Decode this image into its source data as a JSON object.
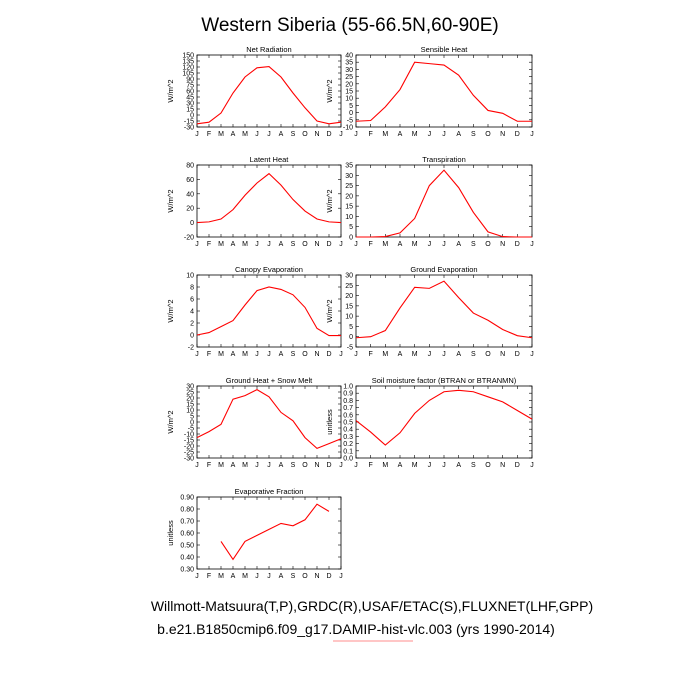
{
  "title": "Western Siberia (55-66.5N,60-90E)",
  "footer": {
    "line1": "Willmott-Matsuura(T,P),GRDC(R),USAF/ETAC(S),FLUXNET(LHF,GPP)",
    "line2": "b.e21.B1850cmip6.f09_g17.DAMIP-hist-vlc.003 (yrs 1990-2014)"
  },
  "colors": {
    "series": "#ff0000",
    "axis": "#000000"
  },
  "chart_data": [
    {
      "type": "line",
      "title": "Net Radiation",
      "ylabel": "W/m^2",
      "categories": [
        "J",
        "F",
        "M",
        "A",
        "M",
        "J",
        "J",
        "A",
        "S",
        "O",
        "N",
        "D",
        "J"
      ],
      "ylim": [
        -30,
        150
      ],
      "yticks": [
        -30,
        -15,
        0,
        15,
        30,
        45,
        60,
        75,
        90,
        105,
        120,
        135,
        150
      ],
      "values": [
        -22,
        -18,
        5,
        55,
        95,
        118,
        121,
        95,
        55,
        18,
        -15,
        -22,
        -18
      ]
    },
    {
      "type": "line",
      "title": "Sensible Heat",
      "ylabel": "W/m^2",
      "categories": [
        "J",
        "F",
        "M",
        "A",
        "M",
        "J",
        "J",
        "A",
        "S",
        "O",
        "N",
        "D",
        "J"
      ],
      "ylim": [
        -10,
        40
      ],
      "yticks": [
        -10,
        -5,
        0,
        5,
        10,
        15,
        20,
        25,
        30,
        35,
        40
      ],
      "values": [
        -6,
        -5.5,
        4,
        16,
        35,
        34,
        33,
        26,
        12,
        1.5,
        -0.5,
        -6,
        -6
      ]
    },
    {
      "type": "line",
      "title": "Latent Heat",
      "ylabel": "W/m^2",
      "categories": [
        "J",
        "F",
        "M",
        "A",
        "M",
        "J",
        "J",
        "A",
        "S",
        "O",
        "N",
        "D",
        "J"
      ],
      "ylim": [
        -20,
        80
      ],
      "yticks": [
        -20,
        0,
        20,
        40,
        60,
        80
      ],
      "values": [
        0,
        1,
        5,
        18,
        38,
        55,
        68,
        52,
        32,
        16,
        5,
        1,
        0
      ]
    },
    {
      "type": "line",
      "title": "Transpiration",
      "ylabel": "W/m^2",
      "categories": [
        "J",
        "F",
        "M",
        "A",
        "M",
        "J",
        "J",
        "A",
        "S",
        "O",
        "N",
        "D",
        "J"
      ],
      "ylim": [
        0,
        35
      ],
      "yticks": [
        0,
        5,
        10,
        15,
        20,
        25,
        30,
        35
      ],
      "values": [
        0,
        0,
        0.2,
        2,
        9,
        25,
        32.5,
        24,
        12,
        2.5,
        0.2,
        0,
        0
      ]
    },
    {
      "type": "line",
      "title": "Canopy Evaporation",
      "ylabel": "W/m^2",
      "categories": [
        "J",
        "F",
        "M",
        "A",
        "M",
        "J",
        "J",
        "A",
        "S",
        "O",
        "N",
        "D",
        "J"
      ],
      "ylim": [
        -2,
        10
      ],
      "yticks": [
        -2,
        0,
        2,
        4,
        6,
        8,
        10
      ],
      "values": [
        0,
        0.4,
        1.4,
        2.4,
        5,
        7.4,
        8,
        7.6,
        6.7,
        4.6,
        1.1,
        -0.1,
        -0.1
      ]
    },
    {
      "type": "line",
      "title": "Ground Evaporation",
      "ylabel": "W/m^2",
      "categories": [
        "J",
        "F",
        "M",
        "A",
        "M",
        "J",
        "J",
        "A",
        "S",
        "O",
        "N",
        "D",
        "J"
      ],
      "ylim": [
        -5,
        30
      ],
      "yticks": [
        -5,
        0,
        5,
        10,
        15,
        20,
        25,
        30
      ],
      "values": [
        -0.5,
        0,
        3,
        14,
        24,
        23.5,
        27,
        19,
        11.5,
        8,
        3.5,
        0.5,
        -0.5
      ]
    },
    {
      "type": "line",
      "title": "Ground Heat + Snow Melt",
      "ylabel": "W/m^2",
      "categories": [
        "J",
        "F",
        "M",
        "A",
        "M",
        "J",
        "J",
        "A",
        "S",
        "O",
        "N",
        "D",
        "J"
      ],
      "ylim": [
        -30,
        30
      ],
      "yticks": [
        -30,
        -25,
        -20,
        -15,
        -10,
        -5,
        0,
        5,
        10,
        15,
        20,
        25,
        30
      ],
      "values": [
        -13,
        -8,
        -2,
        19,
        22,
        27,
        21,
        8,
        1,
        -13,
        -22,
        -18,
        -14
      ]
    },
    {
      "type": "line",
      "title": "Soil moisture factor (BTRAN or BTRANMN)",
      "ylabel": "unitless",
      "categories": [
        "J",
        "F",
        "M",
        "A",
        "M",
        "J",
        "J",
        "A",
        "S",
        "O",
        "N",
        "D",
        "J"
      ],
      "ylim": [
        0.0,
        1.0
      ],
      "yticks": [
        0.0,
        0.1,
        0.2,
        0.3,
        0.4,
        0.5,
        0.6,
        0.7,
        0.8,
        0.9,
        1.0
      ],
      "ytick_labels": [
        "0.0",
        "0.1",
        "0.2",
        "0.3",
        "0.4",
        "0.5",
        "0.6",
        "0.7",
        "0.8",
        "0.9",
        "1.0"
      ],
      "values": [
        0.52,
        0.36,
        0.18,
        0.35,
        0.62,
        0.8,
        0.92,
        0.94,
        0.92,
        0.85,
        0.78,
        0.66,
        0.54
      ]
    },
    {
      "type": "line",
      "title": "Evaporative Fraction",
      "ylabel": "unitless",
      "categories": [
        "J",
        "F",
        "M",
        "A",
        "M",
        "J",
        "J",
        "A",
        "S",
        "O",
        "N",
        "D",
        "J"
      ],
      "ylim": [
        0.3,
        0.9
      ],
      "yticks": [
        0.3,
        0.4,
        0.5,
        0.6,
        0.7,
        0.8,
        0.9
      ],
      "ytick_labels": [
        "0.30",
        "0.40",
        "0.50",
        "0.60",
        "0.70",
        "0.80",
        "0.90"
      ],
      "values": [
        null,
        null,
        0.53,
        0.38,
        0.53,
        0.58,
        0.63,
        0.68,
        0.66,
        0.71,
        0.84,
        0.78,
        null
      ]
    }
  ]
}
